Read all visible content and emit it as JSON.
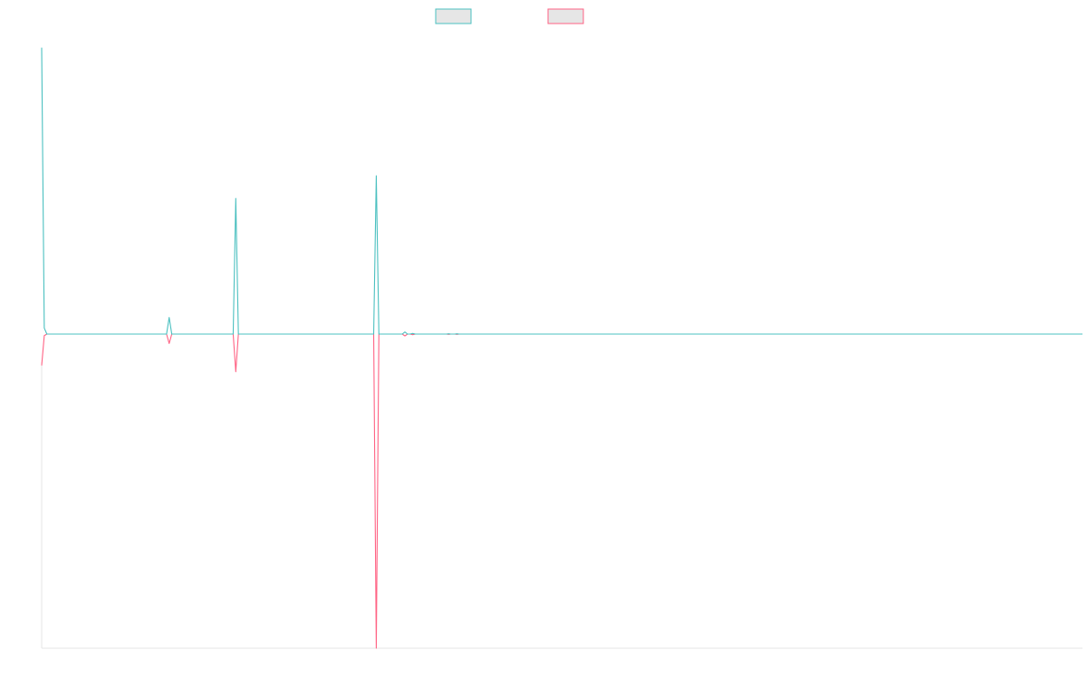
{
  "chart_data": {
    "type": "line",
    "title": "",
    "xlabel": "",
    "ylabel": "",
    "grid": false,
    "legend": "top-center",
    "ylim": [
      -1.0,
      1.0
    ],
    "series": [
      {
        "color": "#4bc0c0",
        "points": [
          [
            0.0,
            0.95
          ],
          [
            0.0025,
            0.02
          ],
          [
            0.005,
            0.0
          ],
          [
            0.12,
            0.0
          ],
          [
            0.1225,
            0.055
          ],
          [
            0.125,
            0.0
          ],
          [
            0.184,
            0.0
          ],
          [
            0.1865,
            0.45
          ],
          [
            0.189,
            0.0
          ],
          [
            0.319,
            0.0
          ],
          [
            0.3215,
            0.525
          ],
          [
            0.324,
            0.0
          ],
          [
            0.3465,
            0.0
          ],
          [
            0.349,
            0.007
          ],
          [
            0.3515,
            0.0
          ],
          [
            0.354,
            0.0
          ],
          [
            0.3565,
            0.002
          ],
          [
            0.359,
            0.0
          ],
          [
            0.389,
            0.0
          ],
          [
            0.391,
            0.001
          ],
          [
            0.393,
            0.0
          ],
          [
            0.397,
            0.0
          ],
          [
            0.399,
            0.001
          ],
          [
            0.401,
            0.0
          ],
          [
            1.0,
            0.0
          ]
        ]
      },
      {
        "color": "#ff6384",
        "points": [
          [
            0.0,
            -0.1
          ],
          [
            0.0025,
            -0.005
          ],
          [
            0.005,
            0.0
          ],
          [
            0.12,
            0.0
          ],
          [
            0.1225,
            -0.03
          ],
          [
            0.125,
            0.0
          ],
          [
            0.184,
            0.0
          ],
          [
            0.1865,
            -0.12
          ],
          [
            0.189,
            0.0
          ],
          [
            0.319,
            0.0
          ],
          [
            0.3215,
            -1.0
          ],
          [
            0.324,
            0.0
          ],
          [
            0.3465,
            0.0
          ],
          [
            0.349,
            -0.006
          ],
          [
            0.3515,
            0.0
          ],
          [
            0.354,
            0.0
          ],
          [
            0.3565,
            -0.002
          ],
          [
            0.359,
            0.0
          ],
          [
            0.389,
            0.0
          ],
          [
            0.391,
            -0.001
          ],
          [
            0.393,
            0.0
          ],
          [
            0.397,
            0.0
          ],
          [
            0.399,
            -0.001
          ],
          [
            0.401,
            0.0
          ],
          [
            1.0,
            0.0
          ]
        ]
      }
    ]
  }
}
